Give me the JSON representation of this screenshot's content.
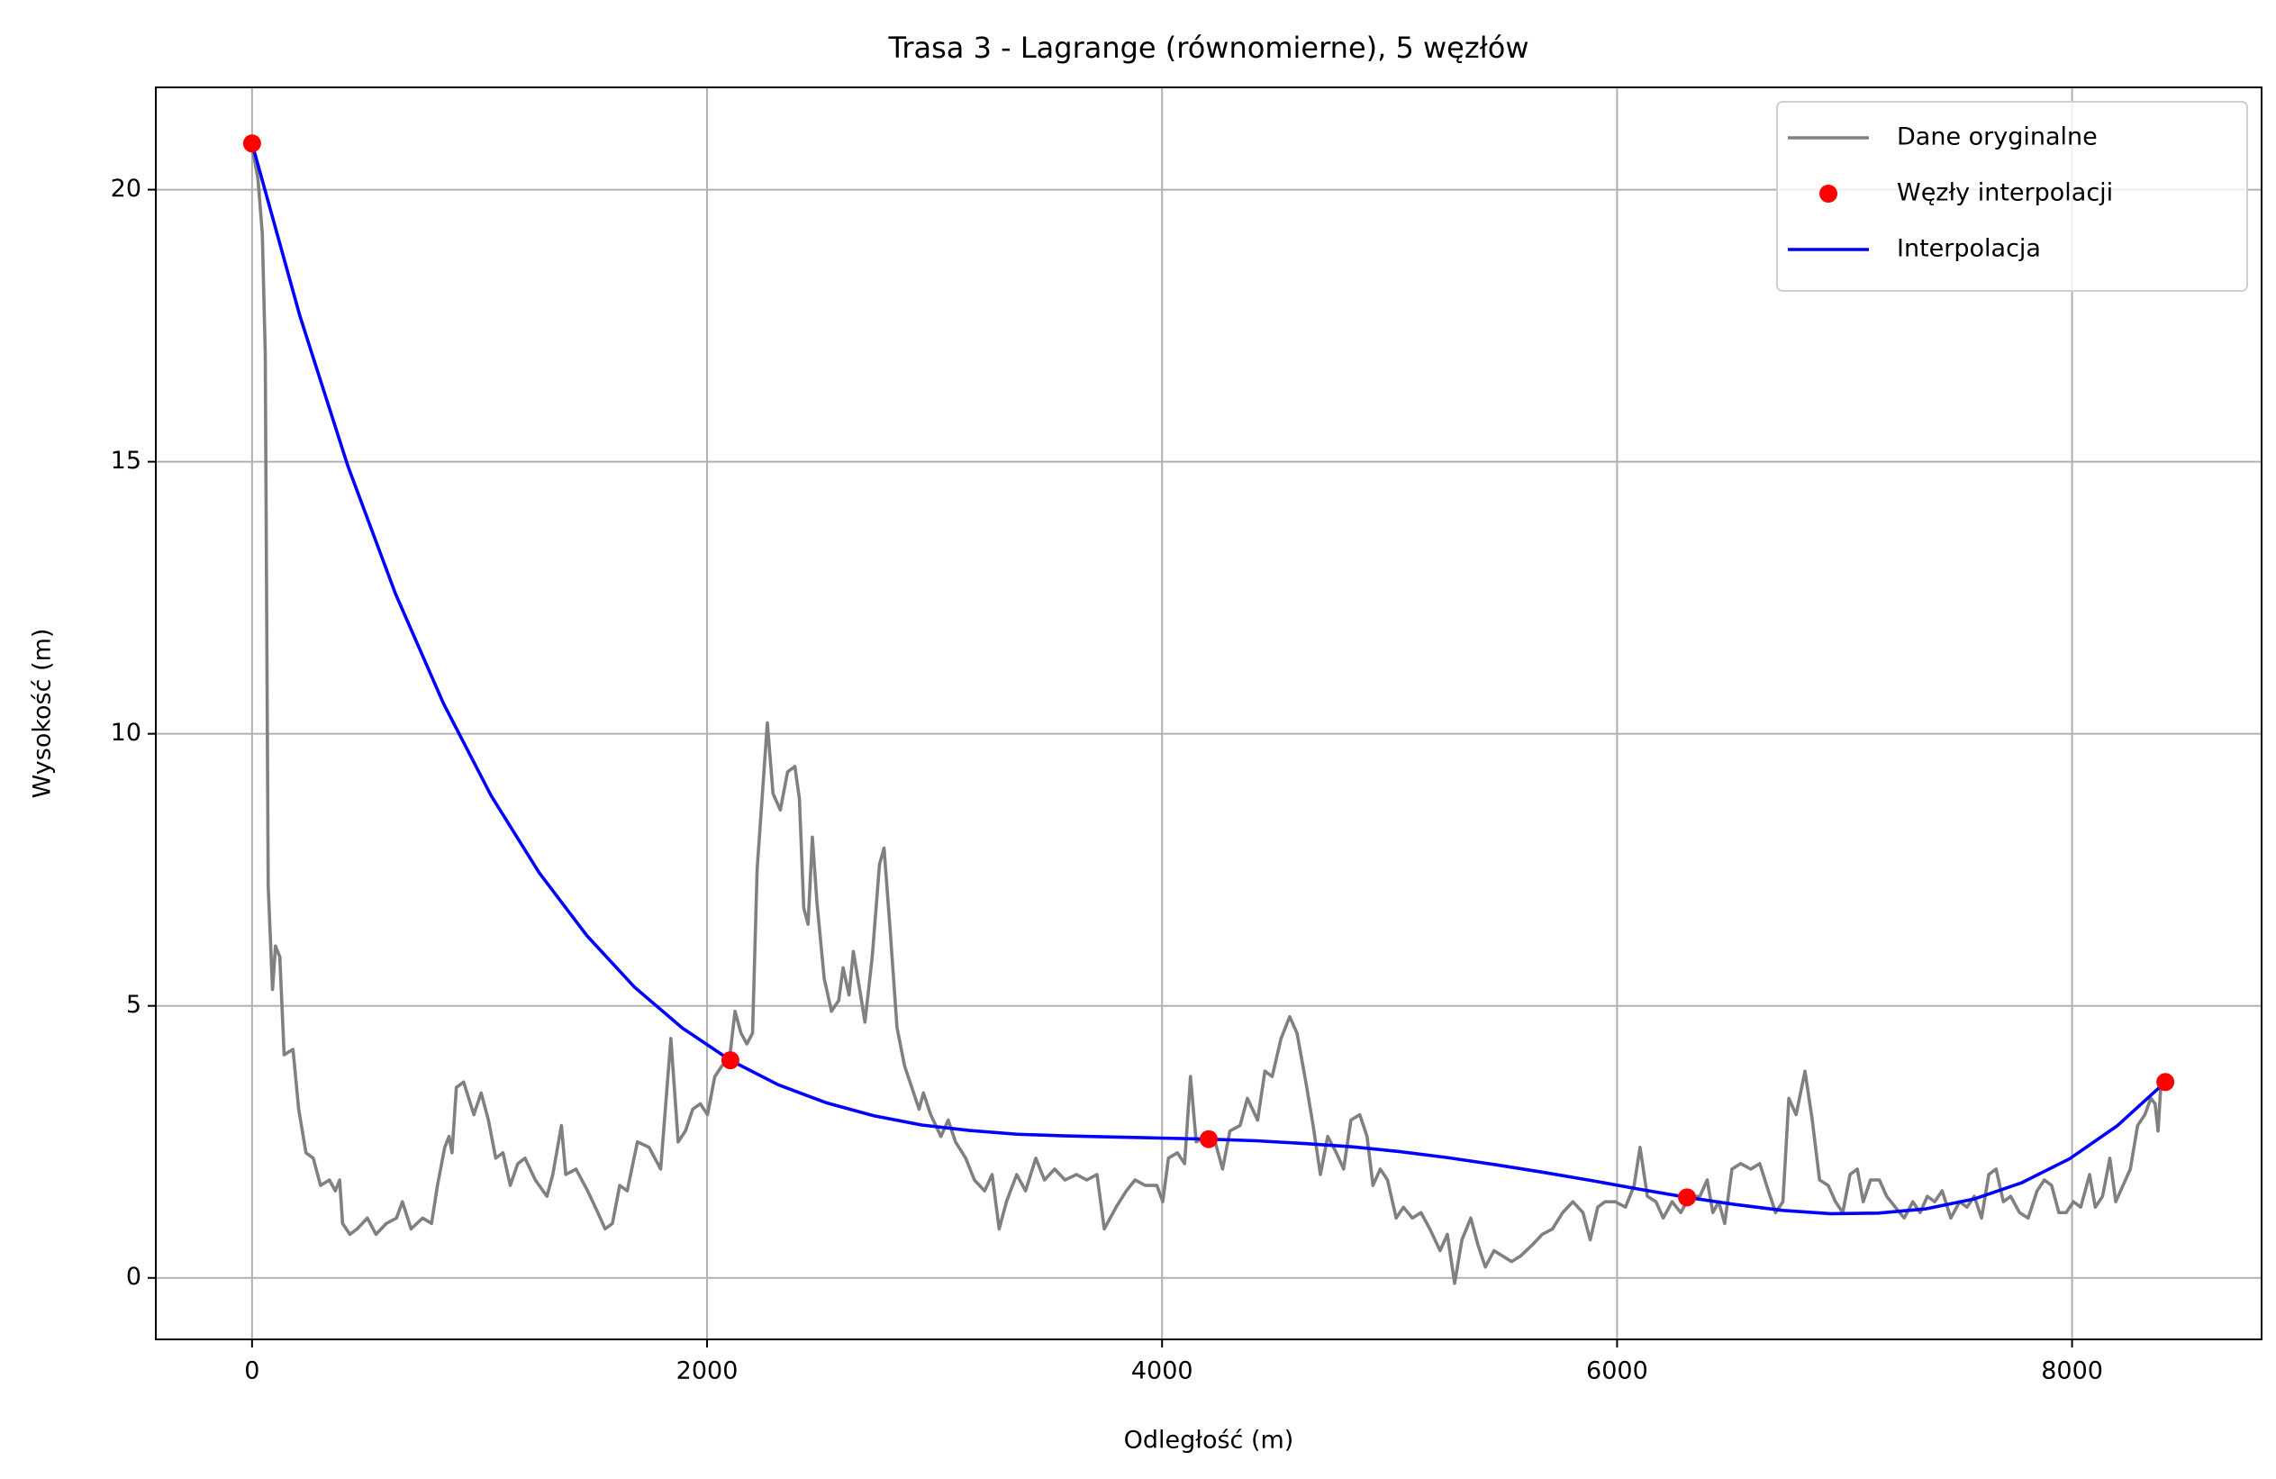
{
  "chart_data": {
    "type": "line",
    "title": "Trasa 3 - Lagrange (równomierne), 5 węzłów",
    "xlabel": "Odległość (m)",
    "ylabel": "Wysokość (m)",
    "xlim": [
      -423,
      8833
    ],
    "ylim": [
      -1.13,
      21.88
    ],
    "xticks": [
      0,
      2000,
      4000,
      6000,
      8000
    ],
    "yticks": [
      0,
      5,
      10,
      15,
      20
    ],
    "grid": true,
    "legend": "upper right",
    "series": [
      {
        "name": "Dane oryginalne",
        "color": "#808080",
        "style": "line",
        "x": [
          0,
          26,
          45,
          58,
          71,
          90,
          103,
          122,
          141,
          180,
          205,
          237,
          269,
          301,
          340,
          366,
          385,
          398,
          430,
          462,
          507,
          545,
          590,
          635,
          661,
          699,
          750,
          789,
          815,
          847,
          866,
          879,
          898,
          930,
          975,
          1007,
          1039,
          1071,
          1103,
          1135,
          1168,
          1200,
          1245,
          1296,
          1322,
          1360,
          1379,
          1424,
          1475,
          1520,
          1552,
          1584,
          1616,
          1649,
          1694,
          1745,
          1796,
          1841,
          1873,
          1905,
          1937,
          1970,
          2002,
          2034,
          2066,
          2098,
          2123,
          2149,
          2175,
          2200,
          2220,
          2245,
          2265,
          2290,
          2322,
          2354,
          2386,
          2406,
          2425,
          2444,
          2463,
          2483,
          2515,
          2547,
          2579,
          2598,
          2624,
          2643,
          2675,
          2694,
          2726,
          2758,
          2778,
          2803,
          2835,
          2868,
          2900,
          2932,
          2951,
          2983,
          3028,
          3060,
          3092,
          3137,
          3175,
          3220,
          3253,
          3284,
          3316,
          3361,
          3400,
          3445,
          3483,
          3528,
          3573,
          3624,
          3669,
          3714,
          3746,
          3798,
          3843,
          3881,
          3926,
          3977,
          4003,
          4028,
          4067,
          4099,
          4125,
          4150,
          4189,
          4227,
          4266,
          4298,
          4343,
          4375,
          4420,
          4452,
          4484,
          4523,
          4561,
          4593,
          4632,
          4664,
          4696,
          4728,
          4766,
          4798,
          4830,
          4869,
          4901,
          4927,
          4959,
          4991,
          5029,
          5061,
          5100,
          5138,
          5177,
          5222,
          5254,
          5286,
          5318,
          5357,
          5389,
          5421,
          5459,
          5498,
          5536,
          5575,
          5626,
          5671,
          5716,
          5761,
          5806,
          5850,
          5882,
          5915,
          5947,
          5992,
          6037,
          6075,
          6101,
          6133,
          6171,
          6203,
          6242,
          6280,
          6319,
          6364,
          6396,
          6421,
          6447,
          6473,
          6505,
          6543,
          6588,
          6627,
          6665,
          6697,
          6729,
          6755,
          6787,
          6826,
          6858,
          6890,
          6928,
          6960,
          6992,
          7024,
          7056,
          7082,
          7114,
          7153,
          7185,
          7223,
          7262,
          7300,
          7332,
          7364,
          7396,
          7429,
          7467,
          7506,
          7538,
          7570,
          7602,
          7634,
          7666,
          7698,
          7730,
          7769,
          7807,
          7846,
          7878,
          7910,
          7942,
          7974,
          8006,
          8038,
          8077,
          8102,
          8134,
          8166,
          8192,
          8224,
          8256,
          8288,
          8320,
          8346,
          8365,
          8378,
          8391,
          8410
        ],
        "values": [
          20.8,
          20.2,
          19.2,
          17,
          7.2,
          5.3,
          6.1,
          5.9,
          4.1,
          4.2,
          3.1,
          2.3,
          2.2,
          1.7,
          1.8,
          1.6,
          1.8,
          1.0,
          0.8,
          0.9,
          1.1,
          0.8,
          1.0,
          1.1,
          1.4,
          0.9,
          1.1,
          1.0,
          1.7,
          2.4,
          2.6,
          2.3,
          3.5,
          3.6,
          3.0,
          3.4,
          2.9,
          2.2,
          2.3,
          1.7,
          2.1,
          2.2,
          1.8,
          1.5,
          1.9,
          2.8,
          1.9,
          2.0,
          1.6,
          1.2,
          0.9,
          1.0,
          1.7,
          1.6,
          2.5,
          2.4,
          2.0,
          4.4,
          2.5,
          2.7,
          3.1,
          3.2,
          3.0,
          3.7,
          3.9,
          4.0,
          4.9,
          4.5,
          4.3,
          4.5,
          7.5,
          9.0,
          10.2,
          8.9,
          8.6,
          9.3,
          9.4,
          8.8,
          6.8,
          6.5,
          8.1,
          6.9,
          5.5,
          4.9,
          5.1,
          5.7,
          5.2,
          6.0,
          5.2,
          4.7,
          5.9,
          7.6,
          7.9,
          6.5,
          4.6,
          3.9,
          3.5,
          3.1,
          3.4,
          3.0,
          2.6,
          2.9,
          2.5,
          2.2,
          1.8,
          1.6,
          1.9,
          0.9,
          1.4,
          1.9,
          1.6,
          2.2,
          1.8,
          2.0,
          1.8,
          1.9,
          1.8,
          1.9,
          0.9,
          1.3,
          1.6,
          1.8,
          1.7,
          1.7,
          1.4,
          2.2,
          2.3,
          2.1,
          3.7,
          2.5,
          2.6,
          2.6,
          2.0,
          2.7,
          2.8,
          3.3,
          2.9,
          3.8,
          3.7,
          4.4,
          4.8,
          4.5,
          3.6,
          2.8,
          1.9,
          2.6,
          2.3,
          2.0,
          2.9,
          3.0,
          2.6,
          1.7,
          2.0,
          1.8,
          1.1,
          1.3,
          1.1,
          1.2,
          0.9,
          0.5,
          0.8,
          -0.1,
          0.7,
          1.1,
          0.6,
          0.2,
          0.5,
          0.4,
          0.3,
          0.4,
          0.6,
          0.8,
          0.9,
          1.2,
          1.4,
          1.2,
          0.7,
          1.3,
          1.4,
          1.4,
          1.3,
          1.7,
          2.4,
          1.5,
          1.4,
          1.1,
          1.4,
          1.2,
          1.5,
          1.5,
          1.8,
          1.2,
          1.4,
          1.0,
          2.0,
          2.1,
          2.0,
          2.1,
          1.6,
          1.2,
          1.4,
          3.3,
          3.0,
          3.8,
          2.9,
          1.8,
          1.7,
          1.4,
          1.2,
          1.9,
          2.0,
          1.4,
          1.8,
          1.8,
          1.5,
          1.3,
          1.1,
          1.4,
          1.2,
          1.5,
          1.4,
          1.6,
          1.1,
          1.4,
          1.3,
          1.5,
          1.1,
          1.9,
          2.0,
          1.4,
          1.5,
          1.2,
          1.1,
          1.6,
          1.8,
          1.7,
          1.2,
          1.2,
          1.4,
          1.3,
          1.9,
          1.3,
          1.5,
          2.2,
          1.4,
          1.7,
          2.0,
          2.8,
          3.0,
          3.3,
          3.2,
          2.7,
          3.6,
          3.6
        ]
      },
      {
        "name": "Węzły interpolacji",
        "color": "#ff0000",
        "style": "marker",
        "x": [
          0,
          2102.5,
          4205,
          6307.5,
          8410
        ],
        "values": [
          20.85,
          4.0,
          2.55,
          1.48,
          3.6
        ]
      },
      {
        "name": "Interpolacja",
        "color": "#0000ff",
        "style": "line",
        "x": [
          0,
          210.25,
          420.5,
          630.75,
          841,
          1051.25,
          1261.5,
          1471.75,
          1682,
          1892.25,
          2102.5,
          2312.75,
          2523,
          2733.25,
          2943.5,
          3153.75,
          3364,
          3574.25,
          3784.5,
          3994.75,
          4205,
          4415.25,
          4625.5,
          4835.75,
          5046,
          5256.25,
          5466.5,
          5676.75,
          5887,
          6097.25,
          6307.5,
          6517.75,
          6728,
          6938.25,
          7148.5,
          7358.75,
          7569,
          7779.25,
          7989.5,
          8199.75,
          8410
        ],
        "values": [
          20.85,
          17.68,
          14.93,
          12.57,
          10.56,
          8.86,
          7.45,
          6.29,
          5.34,
          4.59,
          4.0,
          3.55,
          3.22,
          2.98,
          2.81,
          2.71,
          2.64,
          2.61,
          2.59,
          2.57,
          2.55,
          2.52,
          2.47,
          2.41,
          2.32,
          2.21,
          2.08,
          1.94,
          1.79,
          1.63,
          1.48,
          1.35,
          1.24,
          1.18,
          1.19,
          1.27,
          1.45,
          1.75,
          2.19,
          2.8,
          3.6
        ]
      }
    ]
  }
}
